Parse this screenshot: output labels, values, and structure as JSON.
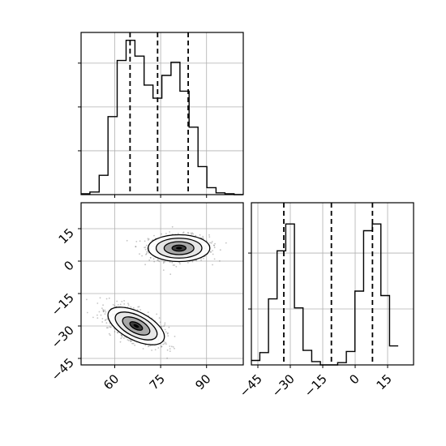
{
  "chart_data": [
    {
      "type": "histogram",
      "panel": "marginal-parameter-1",
      "x_range": [
        49,
        102
      ],
      "bin_edges": [
        49.0,
        51.9,
        54.9,
        57.8,
        60.8,
        63.7,
        66.6,
        69.6,
        72.5,
        75.4,
        78.4,
        81.3,
        84.3,
        87.2,
        90.1,
        93.1,
        96.0,
        99.0,
        101.9
      ],
      "counts": [
        1,
        3,
        22,
        89,
        153,
        176,
        158,
        125,
        110,
        136,
        151,
        118,
        77,
        32,
        8,
        2,
        1,
        0
      ],
      "count_max": 185,
      "quantiles": [
        65,
        74,
        84
      ],
      "grid": true,
      "y_tick_labels_shown": false,
      "x_tick_labels_shown": false
    },
    {
      "type": "histogram",
      "panel": "marginal-parameter-2",
      "x_range": [
        -48,
        27
      ],
      "bin_edges": [
        -47.9,
        -44.1,
        -40.1,
        -36.1,
        -32.1,
        -28.1,
        -24.1,
        -20.1,
        -16.1,
        -12.1,
        -8.1,
        -4.1,
        -0.1,
        3.9,
        7.9,
        11.9,
        15.9,
        19.9
      ],
      "counts": [
        4,
        11,
        59,
        102,
        126,
        51,
        13,
        3,
        0,
        0,
        2,
        12,
        66,
        120,
        126,
        62,
        17
      ],
      "count_max": 145,
      "quantiles": [
        -33,
        -11,
        8
      ],
      "x_tick_labels": [
        "−45",
        "−30",
        "−15",
        "0",
        "15"
      ],
      "x_ticks": [
        -45,
        -30,
        -15,
        0,
        15
      ],
      "grid": true,
      "y_tick_labels_shown": false
    },
    {
      "type": "contour-density",
      "panel": "joint-parameter-1-vs-parameter-2",
      "x_range": [
        49,
        102
      ],
      "y_range": [
        -48,
        27
      ],
      "x_ticks": [
        60,
        75,
        90
      ],
      "x_tick_labels": [
        "60",
        "75",
        "90"
      ],
      "y_ticks": [
        -45,
        -30,
        -15,
        0,
        15
      ],
      "y_tick_labels": [
        "−45",
        "−30",
        "−15",
        "0",
        "15"
      ],
      "clusters": [
        {
          "center": [
            81,
            6
          ],
          "spread": [
            6.5,
            4.0
          ],
          "angle_deg": 0
        },
        {
          "center": [
            67,
            -30
          ],
          "spread": [
            6.5,
            4.2
          ],
          "angle_deg": -27
        }
      ],
      "contour_levels": [
        "inner",
        "middle",
        "outer",
        "outermost"
      ],
      "grid": true
    }
  ]
}
